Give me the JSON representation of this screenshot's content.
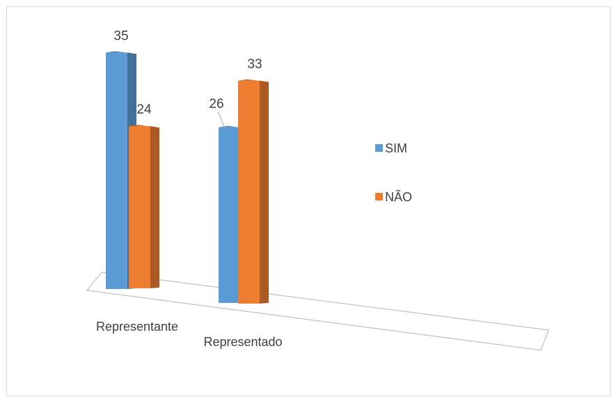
{
  "chart_data": {
    "type": "bar",
    "categories": [
      "Representante",
      "Representado"
    ],
    "series": [
      {
        "name": "SIM",
        "values": [
          35,
          26
        ],
        "color": "#5b9bd5"
      },
      {
        "name": "NÃO",
        "values": [
          24,
          33
        ],
        "color": "#ed7d31"
      }
    ],
    "ylim": [
      0,
      38
    ],
    "legend_position": "right",
    "grid": false,
    "data_labels": true,
    "style": "3d-clustered-column"
  }
}
